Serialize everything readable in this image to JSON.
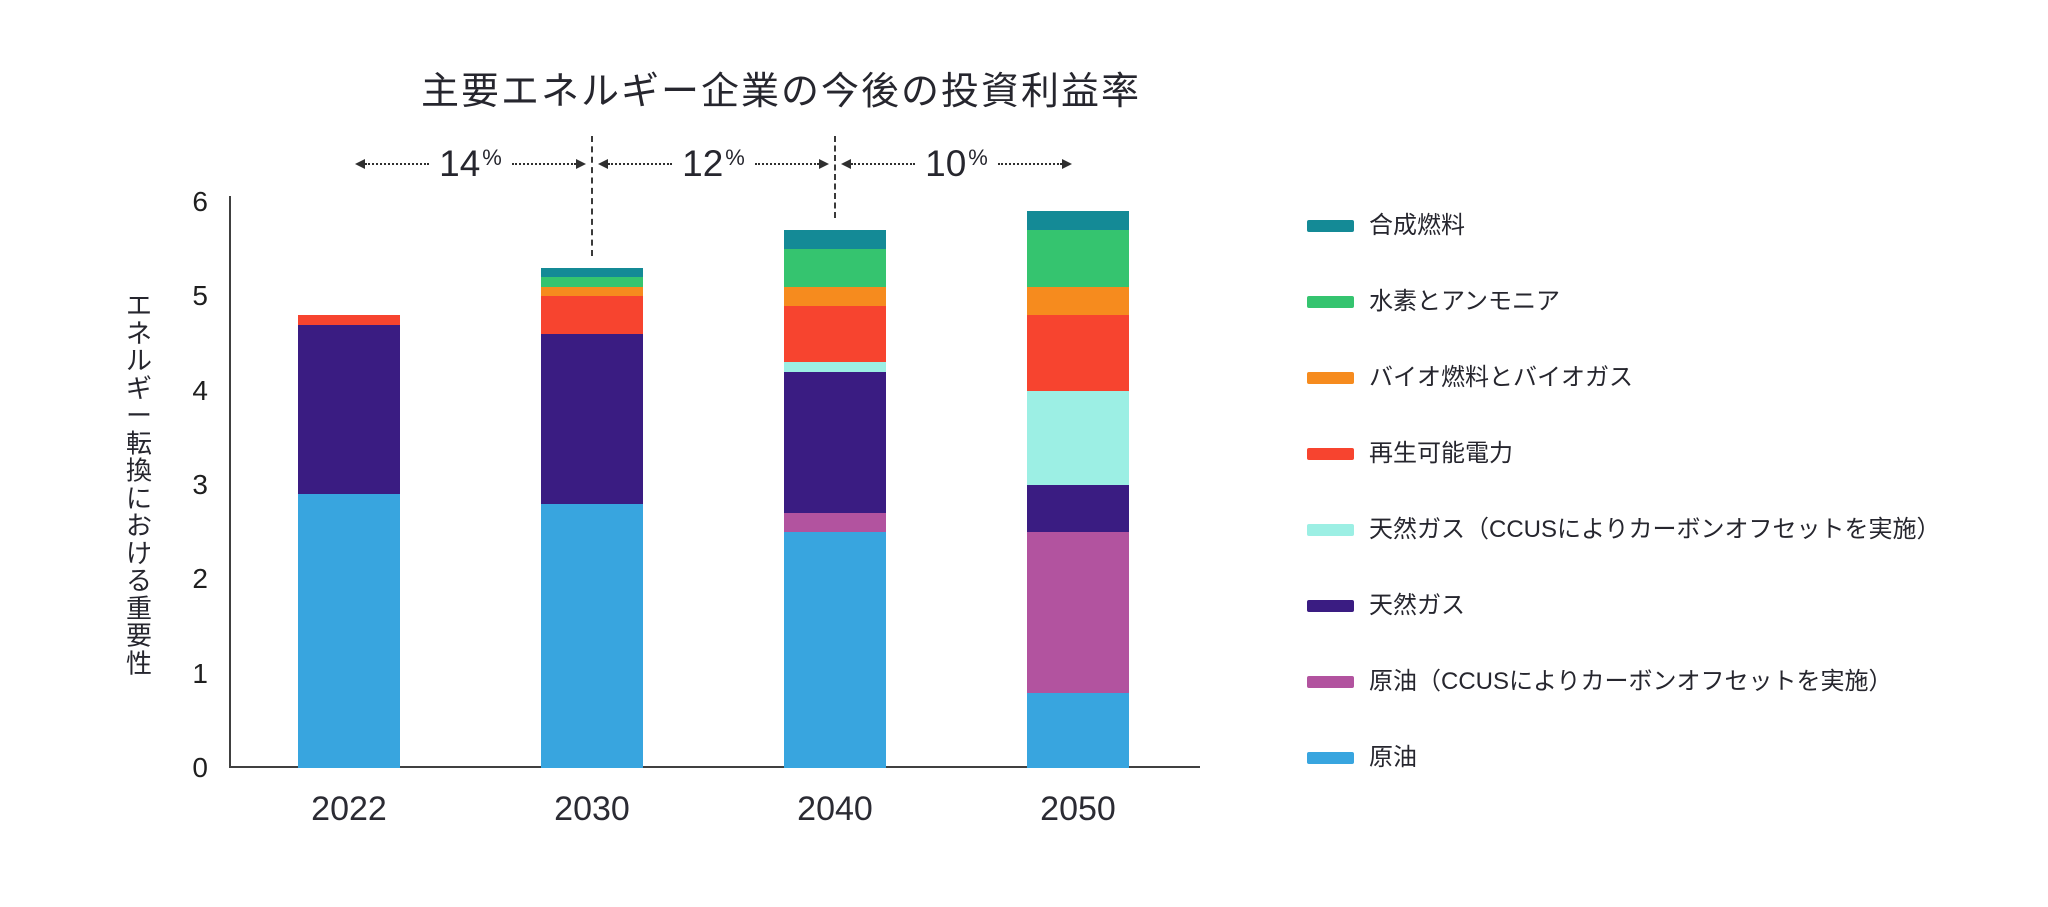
{
  "chart_data": {
    "type": "bar",
    "stacked": true,
    "title": "主要エネルギー企業の今後の投資利益率",
    "ylabel": "エネルギー転換における重要性",
    "xlabel": "",
    "categories": [
      "2022",
      "2030",
      "2040",
      "2050"
    ],
    "ylim": [
      0,
      6
    ],
    "yticks": [
      0,
      1,
      2,
      3,
      4,
      5,
      6
    ],
    "grid": false,
    "legend_position": "right",
    "series": [
      {
        "name": "原油",
        "color": "#38A5DF",
        "values": [
          2.9,
          2.8,
          2.5,
          0.8
        ]
      },
      {
        "name": "原油（CCUSによりカーボンオフセットを実施）",
        "color": "#B2539F",
        "values": [
          0,
          0,
          0.2,
          1.7
        ]
      },
      {
        "name": "天然ガス",
        "color": "#3A1C82",
        "values": [
          1.8,
          1.8,
          1.5,
          0.5
        ]
      },
      {
        "name": "天然ガス（CCUSによりカーボンオフセットを実施）",
        "color": "#9CEFE4",
        "values": [
          0,
          0,
          0.1,
          1.0
        ]
      },
      {
        "name": "再生可能電力",
        "color": "#F7442F",
        "values": [
          0.1,
          0.4,
          0.6,
          0.8
        ]
      },
      {
        "name": "バイオ燃料とバイオガス",
        "color": "#F68B1E",
        "values": [
          0,
          0.1,
          0.2,
          0.3
        ]
      },
      {
        "name": "水素とアンモニア",
        "color": "#35C46F",
        "values": [
          0,
          0.1,
          0.4,
          0.6
        ]
      },
      {
        "name": "合成燃料",
        "color": "#148A96",
        "values": [
          0,
          0.1,
          0.2,
          0.2
        ]
      }
    ],
    "bar_totals": [
      4.8,
      5.3,
      5.7,
      5.9
    ],
    "annotations": [
      {
        "label": "14",
        "unit": "%",
        "from": "2022",
        "to": "2030"
      },
      {
        "label": "12",
        "unit": "%",
        "from": "2030",
        "to": "2040"
      },
      {
        "label": "10",
        "unit": "%",
        "from": "2040",
        "to": "2050"
      }
    ]
  },
  "legend": {
    "items_top_to_bottom": [
      {
        "label": "合成燃料",
        "color": "#148A96"
      },
      {
        "label": "水素とアンモニア",
        "color": "#35C46F"
      },
      {
        "label": "バイオ燃料とバイオガス",
        "color": "#F68B1E"
      },
      {
        "label": "再生可能電力",
        "color": "#F7442F"
      },
      {
        "label": "天然ガス（CCUSによりカーボンオフセットを実施）",
        "color": "#9CEFE4"
      },
      {
        "label": "天然ガス",
        "color": "#3A1C82"
      },
      {
        "label": "原油（CCUSによりカーボンオフセットを実施）",
        "color": "#B2539F"
      },
      {
        "label": "原油",
        "color": "#38A5DF"
      }
    ]
  },
  "colors": {
    "background": "#FFFFFF",
    "text": "#26262E",
    "axis": "#404040",
    "annotation": "#2F2F2F"
  }
}
